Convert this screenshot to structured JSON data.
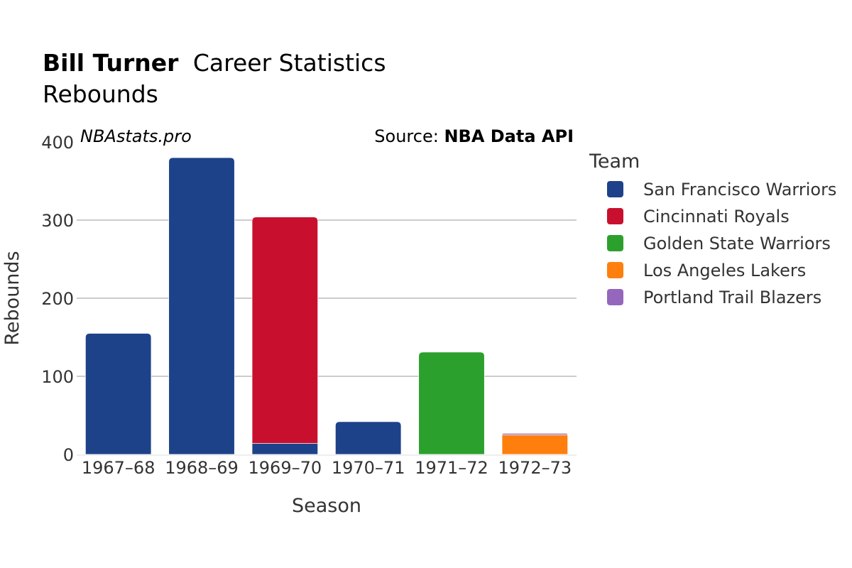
{
  "title": {
    "name": "Bill Turner",
    "rest": "Career Statistics"
  },
  "subtitle": "Rebounds",
  "watermark": "NBAstats.pro",
  "source": {
    "prefix": "Source: ",
    "name": "NBA Data API"
  },
  "legend_title": "Team",
  "chart_data": {
    "type": "bar",
    "stacked": true,
    "categories": [
      "1967–68",
      "1968–69",
      "1969–70",
      "1970–71",
      "1971–72",
      "1972–73"
    ],
    "series": [
      {
        "name": "San Francisco Warriors",
        "color": "#1d428a",
        "values": [
          155,
          380,
          14,
          42,
          0,
          0
        ]
      },
      {
        "name": "Cincinnati Royals",
        "color": "#c8102e",
        "values": [
          0,
          0,
          290,
          0,
          0,
          0
        ]
      },
      {
        "name": "Golden State Warriors",
        "color": "#2ca02c",
        "values": [
          0,
          0,
          0,
          0,
          131,
          0
        ]
      },
      {
        "name": "Los Angeles Lakers",
        "color": "#ff7f0e",
        "values": [
          0,
          0,
          0,
          0,
          0,
          25
        ]
      },
      {
        "name": "Portland Trail Blazers",
        "color": "#9467bd",
        "values": [
          0,
          0,
          0,
          0,
          0,
          2
        ]
      }
    ],
    "xlabel": "Season",
    "ylabel": "Rebounds",
    "ylim": [
      0,
      400
    ],
    "yticks": [
      0,
      100,
      200,
      300,
      400
    ],
    "grid": true,
    "legend": "right"
  }
}
